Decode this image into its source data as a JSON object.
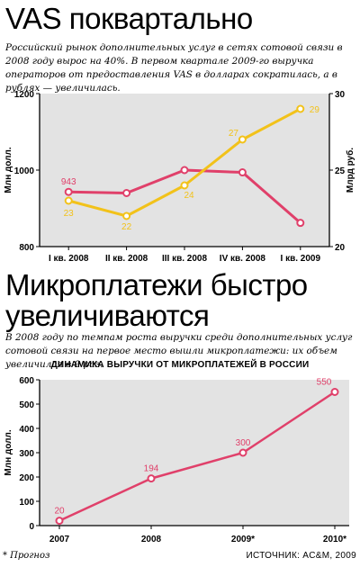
{
  "chart1": {
    "title": "VAS поквартально",
    "lead": "Российский рынок дополнительных услуг в сетях сотовой связи в 2008 году вырос на 40%. В первом квартале 2009-го выручка операторов от предоставления VAS в долларах сократилась, а в рублях — увеличилась."
  },
  "chart2": {
    "title_line1": "Микроплатежи быстро",
    "title_line2": "увеличиваются",
    "lead": "В 2008 году по темпам роста выручки среди дополнительных услуг сотовой связи на первое место вышли микроплатежи: их объем увеличился в 9 раз.",
    "subtitle": "ДИНАМИКА ВЫРУЧКИ ОТ МИКРОПЛАТЕЖЕЙ В РОССИИ"
  },
  "footnote": "* Прогноз",
  "source": "ИСТОЧНИК: AC&M, 2009",
  "chart_data": [
    {
      "type": "line",
      "title": "VAS поквартально",
      "categories": [
        "I кв. 2008",
        "II кв. 2008",
        "III кв. 2008",
        "IV кв. 2008",
        "I кв. 2009"
      ],
      "ylabel": "Млн долл.",
      "ylabel_right": "Млрд руб.",
      "ylim": [
        800,
        1200
      ],
      "ylim_right": [
        20,
        30
      ],
      "yticks": [
        800,
        1000,
        1200
      ],
      "yticks_right": [
        20,
        25,
        30
      ],
      "grid": false,
      "series": [
        {
          "axis": "left",
          "color": "#e0406a",
          "values": [
            943,
            940,
            1000,
            994,
            862
          ],
          "labels": [
            "943",
            "",
            "",
            "",
            ""
          ]
        },
        {
          "axis": "right",
          "color": "#f2c21a",
          "values": [
            23,
            22,
            24,
            27,
            29
          ],
          "labels": [
            "23",
            "22",
            "24",
            "27",
            "29"
          ]
        }
      ],
      "plot_background": "#e3e3e3"
    },
    {
      "type": "line",
      "title": "ДИНАМИКА ВЫРУЧКИ ОТ МИКРОПЛАТЕЖЕЙ В РОССИИ",
      "categories": [
        "2007",
        "2008",
        "2009*",
        "2010*"
      ],
      "ylabel": "Млн долл.",
      "ylim": [
        0,
        600
      ],
      "yticks": [
        0,
        100,
        200,
        300,
        400,
        500,
        600
      ],
      "grid": false,
      "series": [
        {
          "color": "#e0406a",
          "values": [
            20,
            194,
            300,
            550
          ],
          "labels": [
            "20",
            "194",
            "300",
            "550"
          ]
        }
      ],
      "plot_background": "#e3e3e3"
    }
  ]
}
